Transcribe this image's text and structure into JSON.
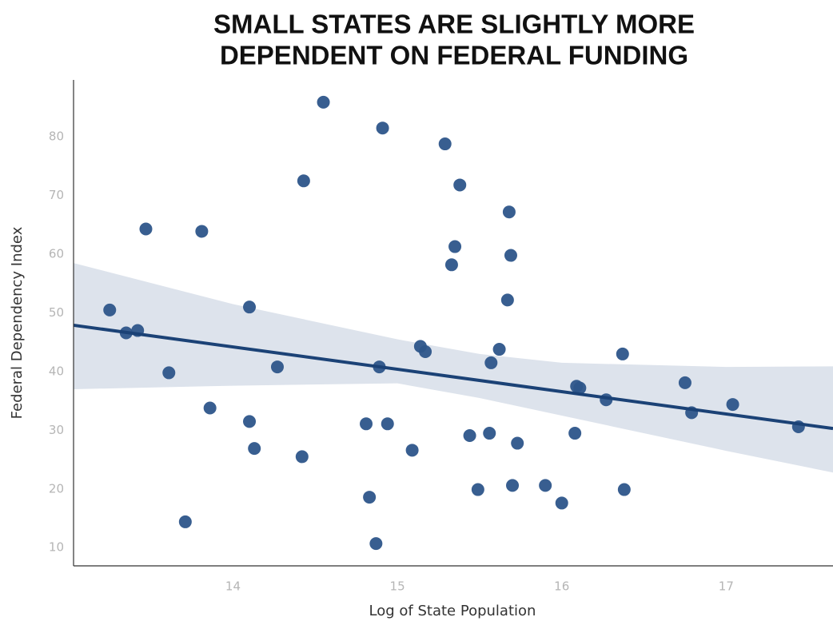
{
  "chart_data": {
    "type": "scatter",
    "title": "SMALL STATES ARE SLIGHTLY MORE",
    "subtitle": "DEPENDENT ON FEDERAL FUNDING",
    "x_label": "Log of State Population",
    "y_label": "Federal Dependency Index",
    "x": [
      13.25,
      13.35,
      13.42,
      13.47,
      13.61,
      13.71,
      13.81,
      13.86,
      14.1,
      14.1,
      14.13,
      14.27,
      14.42,
      14.43,
      14.55,
      14.81,
      14.83,
      14.87,
      14.89,
      14.91,
      14.94,
      15.09,
      15.14,
      15.17,
      15.29,
      15.33,
      15.35,
      15.38,
      15.44,
      15.49,
      15.56,
      15.57,
      15.62,
      15.67,
      15.68,
      15.69,
      15.7,
      15.73,
      15.9,
      16.0,
      16.08,
      16.09,
      16.11,
      16.27,
      16.37,
      16.38,
      16.75,
      16.79,
      17.04,
      17.44
    ],
    "values": [
      50.5,
      46.6,
      47.0,
      64.3,
      39.8,
      14.4,
      63.9,
      33.8,
      31.5,
      51.0,
      26.9,
      40.8,
      25.5,
      72.5,
      85.9,
      31.1,
      18.6,
      10.7,
      40.8,
      81.5,
      31.1,
      26.6,
      44.3,
      43.4,
      78.8,
      58.2,
      61.3,
      71.8,
      29.1,
      19.9,
      29.5,
      41.5,
      43.8,
      52.2,
      67.2,
      59.8,
      20.6,
      27.8,
      20.6,
      17.6,
      29.5,
      37.5,
      37.2,
      35.2,
      43.0,
      19.9,
      38.1,
      33.0,
      34.4,
      30.6
    ],
    "color": "#2d558a",
    "fit": {
      "x": [
        13.03,
        17.65
      ],
      "values": [
        47.9,
        30.3
      ],
      "color": "#1b4276"
    },
    "band": {
      "x": [
        13.03,
        14.0,
        15.0,
        15.5,
        16.0,
        17.0,
        17.65
      ],
      "upper": [
        58.5,
        51.5,
        45.5,
        43.0,
        41.5,
        40.8,
        40.9
      ],
      "lower": [
        37.0,
        37.6,
        38.0,
        35.5,
        32.5,
        26.5,
        22.8
      ],
      "color": "#dde3ec"
    },
    "xlim": [
      13.03,
      17.65
    ],
    "ylim": [
      6.9,
      89.7
    ],
    "xticks": [
      14,
      15,
      16,
      17
    ],
    "yticks": [
      10,
      20,
      30,
      40,
      50,
      60,
      70,
      80
    ],
    "grid": false
  }
}
